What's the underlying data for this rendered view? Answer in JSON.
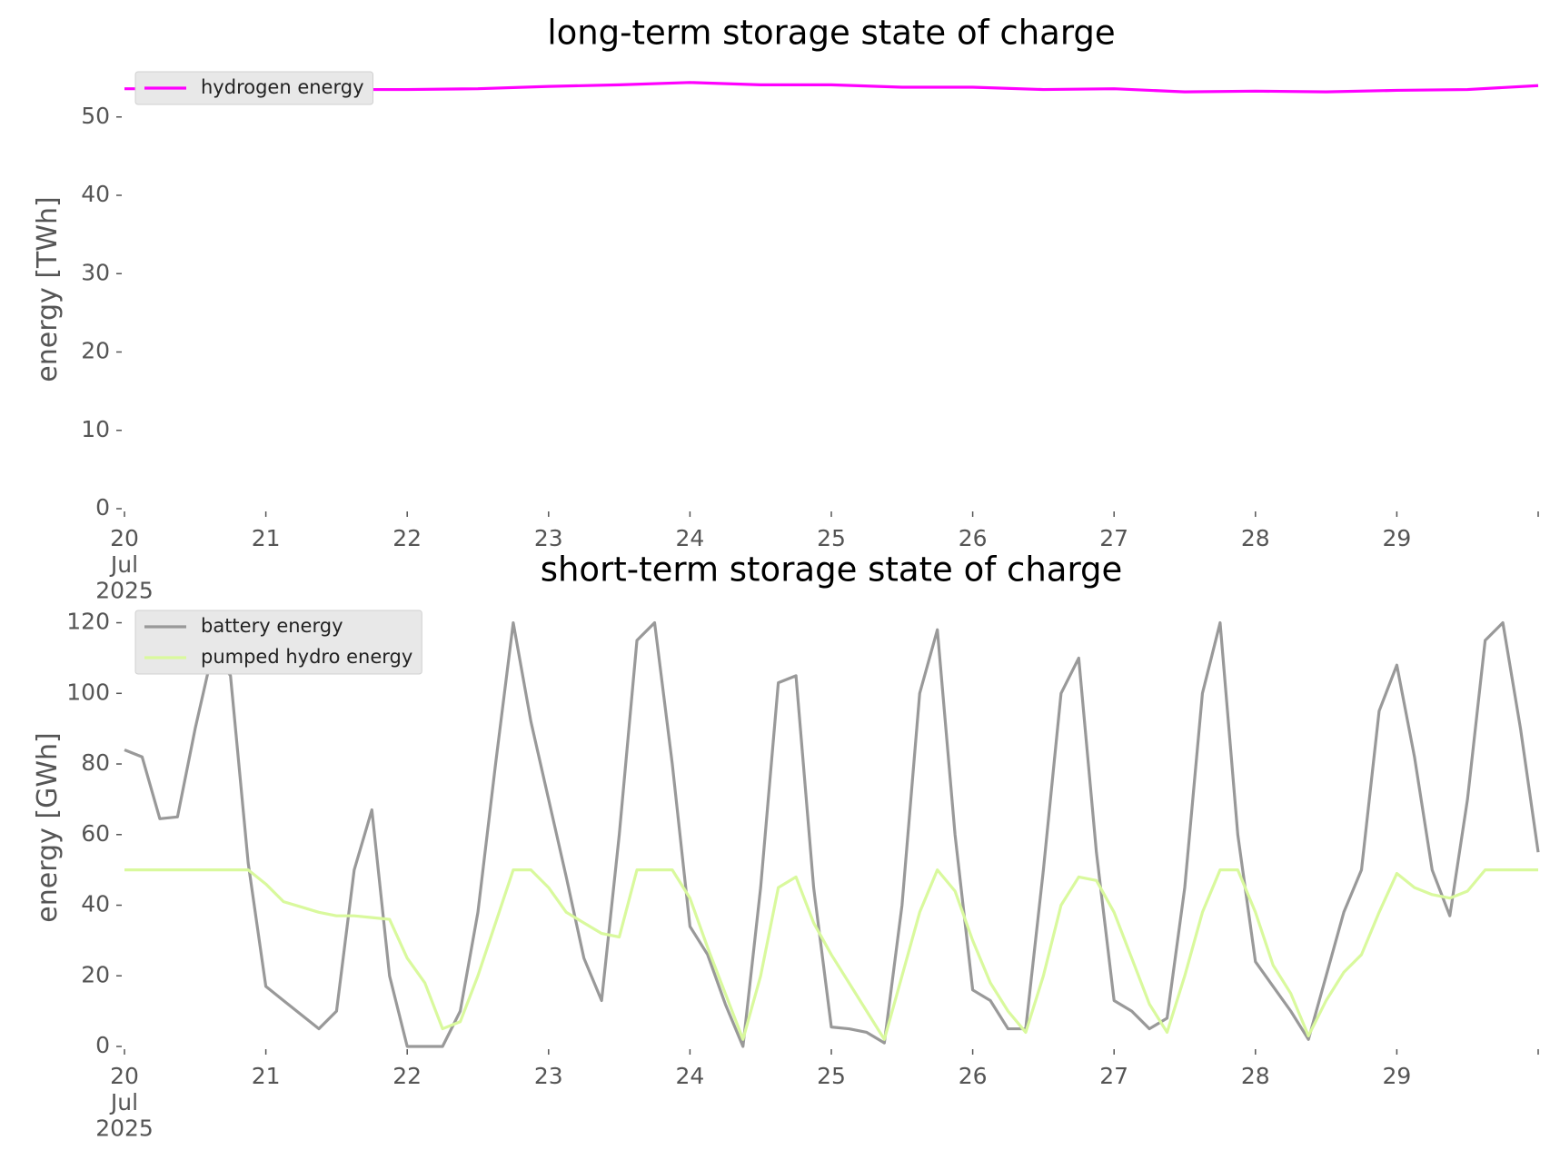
{
  "chart_data": [
    {
      "type": "line",
      "title": "long-term storage state of charge",
      "ylabel": "energy [TWh]",
      "x": [
        20,
        20.5,
        21,
        21.5,
        22,
        22.5,
        23,
        23.5,
        24,
        24.5,
        25,
        25.5,
        26,
        26.5,
        27,
        27.5,
        28,
        28.5,
        29,
        29.5,
        30
      ],
      "xlim": [
        20,
        30
      ],
      "xticks": [
        {
          "value": 20,
          "label": "20\nJul\n2025"
        },
        21,
        22,
        23,
        24,
        25,
        26,
        27,
        28,
        29
      ],
      "ylim": [
        0,
        56
      ],
      "yticks": [
        0,
        10,
        20,
        30,
        40,
        50
      ],
      "legend": "upper left",
      "series": [
        {
          "name": "hydrogen energy",
          "color": "#ff00ff",
          "values": [
            53.6,
            53.6,
            53.6,
            53.5,
            53.5,
            53.6,
            53.9,
            54.1,
            54.4,
            54.1,
            54.1,
            53.8,
            53.8,
            53.5,
            53.6,
            53.2,
            53.3,
            53.2,
            53.4,
            53.5,
            54.0
          ]
        }
      ]
    },
    {
      "type": "line",
      "title": "short-term storage state of charge",
      "ylabel": "energy [GWh]",
      "x": [
        20,
        20.125,
        20.25,
        20.375,
        20.5,
        20.625,
        20.75,
        20.875,
        21,
        21.125,
        21.25,
        21.375,
        21.5,
        21.625,
        21.75,
        21.875,
        22,
        22.125,
        22.25,
        22.375,
        22.5,
        22.625,
        22.75,
        22.875,
        23,
        23.125,
        23.25,
        23.375,
        23.5,
        23.625,
        23.75,
        23.875,
        24,
        24.125,
        24.25,
        24.375,
        24.5,
        24.625,
        24.75,
        24.875,
        25,
        25.125,
        25.25,
        25.375,
        25.5,
        25.625,
        25.75,
        25.875,
        26,
        26.125,
        26.25,
        26.375,
        26.5,
        26.625,
        26.75,
        26.875,
        27,
        27.125,
        27.25,
        27.375,
        27.5,
        27.625,
        27.75,
        27.875,
        28,
        28.125,
        28.25,
        28.375,
        28.5,
        28.625,
        28.75,
        28.875,
        29,
        29.125,
        29.25,
        29.375,
        29.5,
        29.625,
        29.75,
        29.875,
        30
      ],
      "xlim": [
        20,
        30
      ],
      "xticks": [
        {
          "value": 20,
          "label": "20\nJul\n2025"
        },
        21,
        22,
        23,
        24,
        25,
        26,
        27,
        28,
        29
      ],
      "ylim": [
        0,
        124
      ],
      "yticks": [
        0,
        20,
        40,
        60,
        80,
        100,
        120
      ],
      "legend": "upper left",
      "series": [
        {
          "name": "battery energy",
          "color": "#999999",
          "values": [
            84,
            82,
            64.5,
            65,
            90,
            112,
            105,
            52,
            17,
            13,
            9,
            5,
            10,
            50,
            67,
            20,
            0,
            0,
            0,
            10,
            38,
            80,
            120,
            92,
            70,
            48,
            25,
            13,
            60,
            115,
            120,
            80,
            34,
            26,
            12,
            0,
            45,
            103,
            105,
            45,
            5.5,
            5,
            4,
            1,
            40,
            100,
            118,
            60,
            16,
            13,
            5,
            5,
            50,
            100,
            110,
            55,
            13,
            10,
            5,
            8,
            45,
            100,
            120,
            60,
            24,
            17,
            10,
            2,
            20,
            38,
            50,
            95,
            108,
            82,
            50,
            37,
            70,
            115,
            120,
            90,
            55
          ]
        },
        {
          "name": "pumped hydro energy",
          "color": "#d9f99d",
          "values": [
            50,
            50,
            50,
            50,
            50,
            50,
            50,
            50,
            46,
            41,
            39.5,
            38,
            37,
            37,
            36.5,
            36,
            25,
            18,
            5,
            7,
            20,
            35,
            50,
            50,
            45,
            38,
            35,
            32,
            31,
            50,
            50,
            50,
            42,
            28,
            15,
            2,
            20,
            45,
            48,
            35,
            26,
            18,
            10,
            2,
            20,
            38,
            50,
            44,
            30,
            18,
            10,
            4,
            20,
            40,
            48,
            47,
            38,
            25,
            12,
            4,
            20,
            38,
            50,
            50,
            38,
            23,
            15,
            3,
            13,
            21,
            26,
            38,
            49,
            45,
            43,
            42,
            44,
            50,
            50,
            50,
            50
          ]
        }
      ]
    }
  ]
}
